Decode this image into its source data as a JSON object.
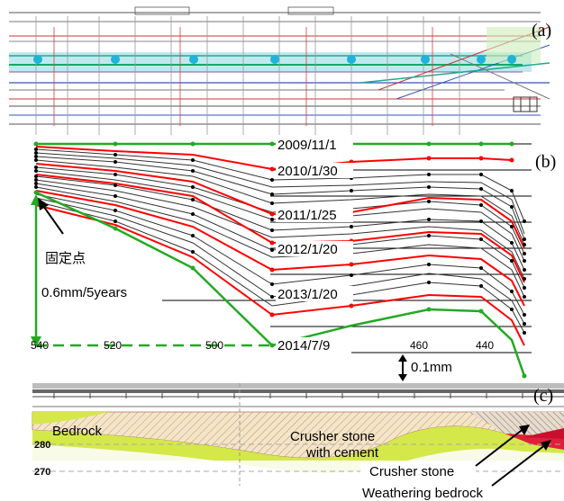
{
  "panel_labels": {
    "a": "(a)",
    "b": "(b)",
    "c": "(c)"
  },
  "settlement_plot": {
    "x_ticks": [
      "540",
      "520",
      "500",
      "460",
      "440"
    ],
    "dates": [
      "2009/11/1",
      "2010/1/30",
      "2011/1/25",
      "2012/1/20",
      "2013/1/20",
      "2014/7/9"
    ],
    "fixed_point_label": "固定点",
    "total_label": "0.6mm/5years",
    "scale_label": "0.1mm"
  },
  "cross_section": {
    "depth_ticks": [
      "280",
      "270"
    ],
    "materials": {
      "bedrock": "Bedrock",
      "crusher_cement_line1": "Crusher stone",
      "crusher_cement_line2": "with cement",
      "crusher": "Crusher stone",
      "weathering": "Weathering bedrock"
    }
  },
  "colors": {
    "highlight_series": "#ff0000",
    "baseline_series": "#22aa22",
    "other_series": "#333333",
    "fill_cement": "#e8d9a8",
    "fill_weathering": "#d4e84a",
    "fill_crusher": "#e0203a",
    "drawing_accent": "#1fb3d9"
  }
}
